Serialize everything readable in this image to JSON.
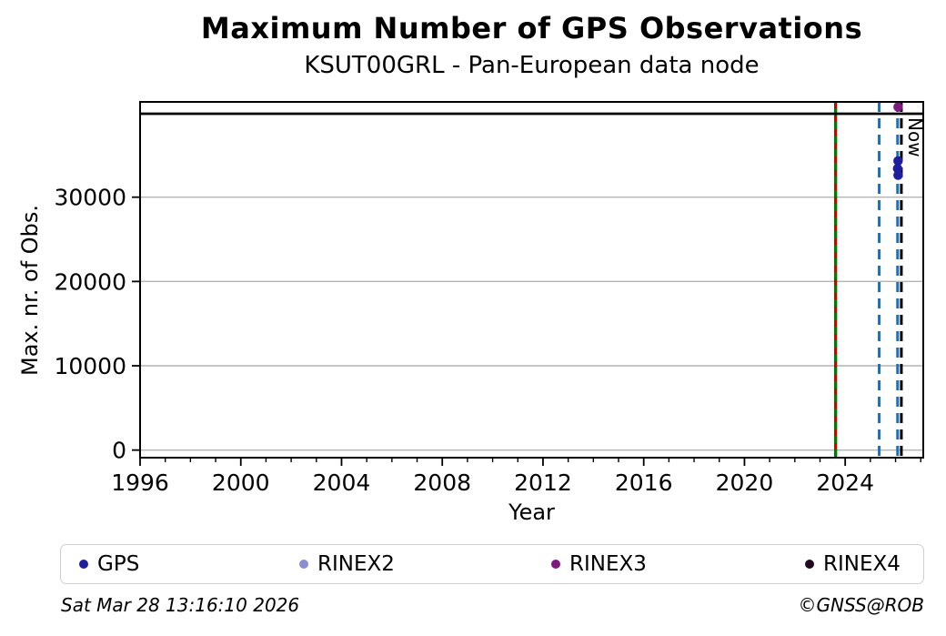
{
  "footer": {
    "timestamp": "Sat Mar 28 13:16:10 2026",
    "credit": "©GNSS@ROB"
  },
  "legend": {
    "items": [
      {
        "label": "GPS",
        "color": "#1f1f9e"
      },
      {
        "label": "RINEX2",
        "color": "#8c8cd4"
      },
      {
        "label": "RINEX3",
        "color": "#7d1a7d"
      },
      {
        "label": "RINEX4",
        "color": "#200a20"
      }
    ]
  },
  "chart_data": {
    "type": "scatter",
    "title": "Maximum Number of GPS Observations",
    "subtitle": "KSUT00GRL - Pan-European data node",
    "xlabel": "Year",
    "ylabel": "Max. nr. of Obs.",
    "now_label": "Now",
    "xlim": [
      1996,
      2027.1
    ],
    "ylim": [
      -900,
      41300
    ],
    "xticks": [
      1996,
      2000,
      2004,
      2008,
      2012,
      2016,
      2020,
      2024
    ],
    "x_minor_step": 1,
    "yticks": [
      0,
      10000,
      20000,
      30000
    ],
    "grid": {
      "axis": "y",
      "color": "#b4b4b4"
    },
    "series": [
      {
        "name": "GPS",
        "color": "#1f1f9e",
        "points": [
          [
            2026.1,
            34300
          ],
          [
            2026.08,
            33400
          ],
          [
            2026.1,
            32600
          ]
        ]
      },
      {
        "name": "RINEX2",
        "color": "#8c8cd4",
        "points": []
      },
      {
        "name": "RINEX3",
        "color": "#7d1a7d",
        "points": [
          [
            2026.1,
            40700
          ]
        ]
      },
      {
        "name": "RINEX4",
        "color": "#200a20",
        "points": []
      }
    ],
    "hlines": [
      {
        "name": "max-obs-hline",
        "y": 39900,
        "color": "#000000",
        "style": "solid"
      }
    ],
    "vlines": [
      {
        "name": "green-marker-vline",
        "x": 2023.62,
        "color": "#007a00",
        "style": "solid"
      },
      {
        "name": "red-dashed-vline",
        "x": 2023.62,
        "color": "#cc0000",
        "style": "dashed-short"
      },
      {
        "name": "blue-dashed-vline-1",
        "x": 2025.35,
        "color": "#1b6ec8",
        "style": "dashed"
      },
      {
        "name": "blue-dashed-vline-2",
        "x": 2026.08,
        "color": "#1b6ec8",
        "style": "dashed"
      },
      {
        "name": "now-vline",
        "x": 2026.23,
        "color": "#000000",
        "style": "dashed"
      }
    ],
    "legend_position": "bottom",
    "legend_columns": 4
  }
}
